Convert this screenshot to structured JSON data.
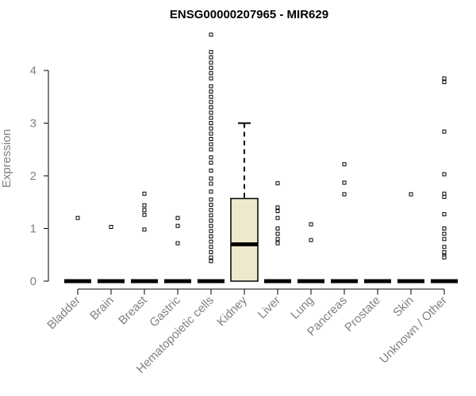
{
  "chart_data": {
    "type": "box",
    "title": "ENSG00000207965 - MIR629",
    "xlabel": "",
    "ylabel": "Expression",
    "ylim": [
      0,
      4.7
    ],
    "yticks": [
      0,
      1,
      2,
      3,
      4
    ],
    "grid": false,
    "categories": [
      "Bladder",
      "Brain",
      "Breast",
      "Gastric",
      "Hematopoietic cells",
      "Kidney",
      "Liver",
      "Lung",
      "Pancreas",
      "Prostate",
      "Skin",
      "Unknown / Other"
    ],
    "boxes": [
      {
        "category": "Bladder",
        "min": 0,
        "q1": 0,
        "median": 0,
        "q3": 0,
        "max": 0,
        "outliers": [
          1.2
        ]
      },
      {
        "category": "Brain",
        "min": 0,
        "q1": 0,
        "median": 0,
        "q3": 0,
        "max": 0,
        "outliers": [
          1.03
        ]
      },
      {
        "category": "Breast",
        "min": 0,
        "q1": 0,
        "median": 0,
        "q3": 0,
        "max": 0,
        "outliers": [
          1.66,
          1.44,
          1.35,
          1.26,
          0.98
        ]
      },
      {
        "category": "Gastric",
        "min": 0,
        "q1": 0,
        "median": 0,
        "q3": 0,
        "max": 0,
        "outliers": [
          1.2,
          1.05,
          0.72
        ]
      },
      {
        "category": "Hematopoietic cells",
        "min": 0,
        "q1": 0,
        "median": 0,
        "q3": 0,
        "max": 0,
        "outliers": [
          4.68,
          4.35,
          4.25,
          4.15,
          4.05,
          3.95,
          3.85,
          3.7,
          3.6,
          3.5,
          3.4,
          3.3,
          3.2,
          3.1,
          3.0,
          2.9,
          2.8,
          2.7,
          2.6,
          2.5,
          2.35,
          2.25,
          2.1,
          1.95,
          1.85,
          1.7,
          1.55,
          1.45,
          1.35,
          1.25,
          1.15,
          1.05,
          0.95,
          0.85,
          0.75,
          0.65,
          0.55,
          0.45,
          0.38
        ]
      },
      {
        "category": "Kidney",
        "min": 0,
        "q1": 0,
        "median": 0.7,
        "q3": 1.57,
        "max": 3.0,
        "outliers": []
      },
      {
        "category": "Liver",
        "min": 0,
        "q1": 0,
        "median": 0,
        "q3": 0,
        "max": 0,
        "outliers": [
          1.86,
          1.4,
          1.33,
          1.2,
          1.0,
          0.9,
          0.8,
          0.72
        ]
      },
      {
        "category": "Lung",
        "min": 0,
        "q1": 0,
        "median": 0,
        "q3": 0,
        "max": 0,
        "outliers": [
          1.08,
          0.78
        ]
      },
      {
        "category": "Pancreas",
        "min": 0,
        "q1": 0,
        "median": 0,
        "q3": 0,
        "max": 0,
        "outliers": [
          2.22,
          1.87,
          1.65
        ]
      },
      {
        "category": "Prostate",
        "min": 0,
        "q1": 0,
        "median": 0,
        "q3": 0,
        "max": 0,
        "outliers": []
      },
      {
        "category": "Skin",
        "min": 0,
        "q1": 0,
        "median": 0,
        "q3": 0,
        "max": 0,
        "outliers": [
          1.65
        ]
      },
      {
        "category": "Unknown / Other",
        "min": 0,
        "q1": 0,
        "median": 0,
        "q3": 0,
        "max": 0,
        "outliers": [
          3.85,
          3.78,
          2.84,
          2.03,
          1.66,
          1.6,
          1.27,
          1.0,
          0.9,
          0.8,
          0.65,
          0.55,
          0.48,
          0.45
        ]
      }
    ],
    "colors": {
      "box_fill": "#EEE8CD",
      "stroke": "#000000",
      "axis_text": "#808080"
    }
  }
}
